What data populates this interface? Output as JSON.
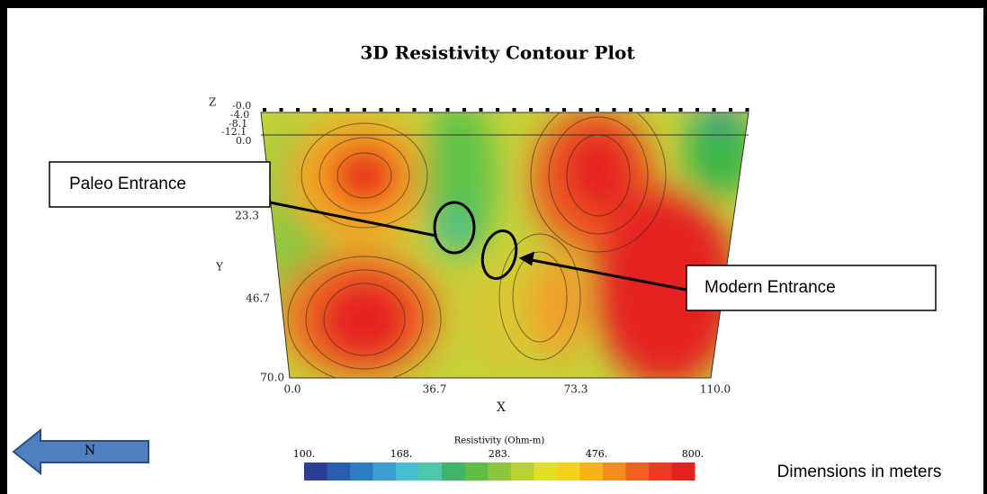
{
  "title": "3D Resistivity Contour Plot",
  "axes": {
    "z": {
      "label": "Z",
      "ticks": [
        "-0.0",
        "-4.0",
        "-8.1",
        "-12.1",
        "0.0"
      ]
    },
    "y": {
      "label": "Y",
      "ticks": [
        "23.3",
        "46.7",
        "70.0"
      ]
    },
    "x": {
      "label": "X",
      "ticks": [
        "0.0",
        "36.7",
        "73.3",
        "110.0"
      ]
    }
  },
  "annotations": [
    "Paleo Entrance",
    "Modern Entrance"
  ],
  "colorbar": {
    "title": "Resistivity (Ohm-m)",
    "ticks": [
      "100.",
      "168.",
      "283.",
      "476.",
      "800."
    ]
  },
  "north": "N",
  "note": "Dimensions in meters"
}
